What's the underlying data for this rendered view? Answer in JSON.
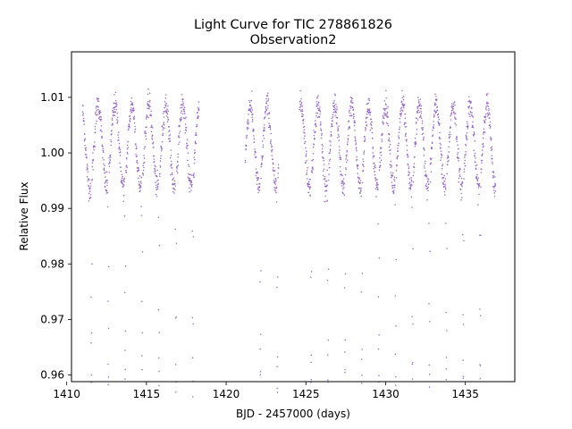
{
  "chart_data": {
    "type": "scatter",
    "title": "Light Curve for TIC 278861826",
    "subtitle": "Observation2",
    "xlabel": "BJD - 2457000 (days)",
    "ylabel": "Relative Flux",
    "xlim": [
      1410.3,
      1438.1
    ],
    "ylim": [
      0.9588,
      1.0182
    ],
    "x_ticks": [
      1410,
      1415,
      1420,
      1425,
      1430,
      1435
    ],
    "y_ticks": [
      0.96,
      0.97,
      0.98,
      0.99,
      1.0,
      1.01
    ],
    "x_tick_labels": [
      "1410",
      "1415",
      "1420",
      "1425",
      "1430",
      "1435"
    ],
    "y_tick_labels": [
      "0.96",
      "0.97",
      "0.98",
      "0.99",
      "1.00",
      "1.01"
    ],
    "grid": false,
    "marker_color": "#9467bd",
    "series": [
      {
        "segments": [
          {
            "x_start": 1411.0,
            "x_end": 1418.3
          },
          {
            "x_start": 1421.2,
            "x_end": 1423.3
          },
          {
            "x_start": 1424.6,
            "x_end": 1436.9
          }
        ],
        "eclipse_period_days": 1.06,
        "eclipse_reference_epoch": 1411.55,
        "eclipse_min_flux": 0.963,
        "out_of_eclipse_max_flux": 1.0125,
        "out_of_eclipse_min_flux": 0.996,
        "baseline_flux": 1.0
      }
    ]
  }
}
